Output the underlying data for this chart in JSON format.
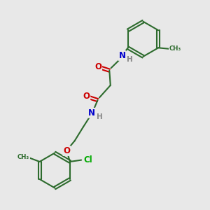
{
  "background_color": "#e8e8e8",
  "bond_color": "#2d6b2d",
  "atom_colors": {
    "O": "#cc0000",
    "N": "#0000cc",
    "Cl": "#00aa00",
    "H": "#888888",
    "C": "#2d6b2d"
  }
}
